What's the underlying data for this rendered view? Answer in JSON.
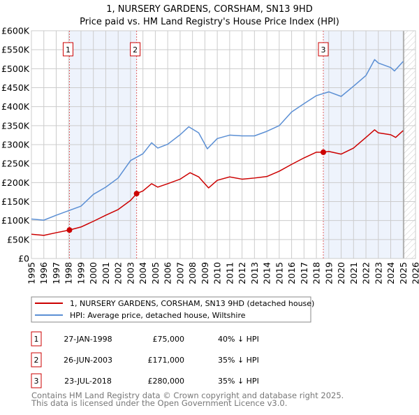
{
  "chart_data": {
    "type": "line",
    "title": "1, NURSERY GARDENS, CORSHAM, SN13 9HD",
    "subtitle": "Price paid vs. HM Land Registry's House Price Index (HPI)",
    "xlim": [
      1995,
      2026
    ],
    "ylim": [
      0,
      600000
    ],
    "grid": true,
    "x_ticks": [
      "1995",
      "1996",
      "1997",
      "1998",
      "1999",
      "2000",
      "2001",
      "2002",
      "2003",
      "2004",
      "2005",
      "2006",
      "2007",
      "2008",
      "2009",
      "2010",
      "2011",
      "2012",
      "2013",
      "2014",
      "2015",
      "2016",
      "2017",
      "2018",
      "2019",
      "2020",
      "2021",
      "2022",
      "2023",
      "2024",
      "2025",
      "2026"
    ],
    "y_ticks": [
      {
        "value": 0,
        "label": "£0"
      },
      {
        "value": 50000,
        "label": "£50K"
      },
      {
        "value": 100000,
        "label": "£100K"
      },
      {
        "value": 150000,
        "label": "£150K"
      },
      {
        "value": 200000,
        "label": "£200K"
      },
      {
        "value": 250000,
        "label": "£250K"
      },
      {
        "value": 300000,
        "label": "£300K"
      },
      {
        "value": 350000,
        "label": "£350K"
      },
      {
        "value": 400000,
        "label": "£400K"
      },
      {
        "value": 450000,
        "label": "£450K"
      },
      {
        "value": 500000,
        "label": "£500K"
      },
      {
        "value": 550000,
        "label": "£550K"
      },
      {
        "value": 600000,
        "label": "£600K"
      }
    ],
    "shaded_ranges": [
      [
        1998.07,
        2003.49
      ],
      [
        2018.56,
        2025.05
      ]
    ],
    "hatched_from": 2025.05,
    "series": [
      {
        "name": "1, NURSERY GARDENS, CORSHAM, SN13 9HD (detached house)",
        "color": "#cc0000",
        "points": [
          [
            1995,
            64000
          ],
          [
            1996,
            61000
          ],
          [
            1997,
            68000
          ],
          [
            1998.07,
            75000
          ],
          [
            1999,
            83000
          ],
          [
            2000,
            98000
          ],
          [
            2001,
            114000
          ],
          [
            2002,
            129000
          ],
          [
            2003,
            153000
          ],
          [
            2003.49,
            171000
          ],
          [
            2004,
            178000
          ],
          [
            2004.7,
            197000
          ],
          [
            2005.2,
            188000
          ],
          [
            2006,
            197000
          ],
          [
            2007,
            209000
          ],
          [
            2007.8,
            226000
          ],
          [
            2008.5,
            215000
          ],
          [
            2009.3,
            186000
          ],
          [
            2010,
            206000
          ],
          [
            2011,
            215000
          ],
          [
            2012,
            209000
          ],
          [
            2013,
            212000
          ],
          [
            2014,
            216000
          ],
          [
            2015,
            230000
          ],
          [
            2016,
            248000
          ],
          [
            2017,
            265000
          ],
          [
            2018,
            280000
          ],
          [
            2018.56,
            280000
          ],
          [
            2019,
            282000
          ],
          [
            2020,
            275000
          ],
          [
            2021,
            291000
          ],
          [
            2022,
            319000
          ],
          [
            2022.7,
            339000
          ],
          [
            2023,
            331000
          ],
          [
            2024,
            326000
          ],
          [
            2024.4,
            319000
          ],
          [
            2025,
            337000
          ]
        ]
      },
      {
        "name": "HPI: Average price, detached house, Wiltshire",
        "color": "#5b8fd4",
        "points": [
          [
            1995,
            104000
          ],
          [
            1996,
            101000
          ],
          [
            1997,
            114000
          ],
          [
            1998,
            126000
          ],
          [
            1999,
            138000
          ],
          [
            2000,
            169000
          ],
          [
            2001,
            188000
          ],
          [
            2002,
            212000
          ],
          [
            2003,
            258000
          ],
          [
            2004,
            276000
          ],
          [
            2004.7,
            305000
          ],
          [
            2005.2,
            291000
          ],
          [
            2006,
            301000
          ],
          [
            2007,
            326000
          ],
          [
            2007.7,
            347000
          ],
          [
            2008.5,
            331000
          ],
          [
            2009.2,
            289000
          ],
          [
            2010,
            316000
          ],
          [
            2011,
            325000
          ],
          [
            2012,
            323000
          ],
          [
            2013,
            323000
          ],
          [
            2014,
            335000
          ],
          [
            2015,
            350000
          ],
          [
            2016,
            386000
          ],
          [
            2017,
            408000
          ],
          [
            2018,
            429000
          ],
          [
            2019,
            439000
          ],
          [
            2020,
            427000
          ],
          [
            2021,
            454000
          ],
          [
            2022,
            482000
          ],
          [
            2022.7,
            524000
          ],
          [
            2023,
            515000
          ],
          [
            2024,
            503000
          ],
          [
            2024.3,
            494000
          ],
          [
            2025,
            519000
          ]
        ]
      }
    ],
    "markers": [
      {
        "label": "1",
        "x": 1998.07,
        "y": 75000
      },
      {
        "label": "2",
        "x": 2003.49,
        "y": 171000
      },
      {
        "label": "3",
        "x": 2018.56,
        "y": 280000
      }
    ]
  },
  "legend": {
    "property": "1, NURSERY GARDENS, CORSHAM, SN13 9HD (detached house)",
    "hpi": "HPI: Average price, detached house, Wiltshire"
  },
  "transactions": [
    {
      "num": "1",
      "date": "27-JAN-1998",
      "price": "£75,000",
      "hpi": "40% ↓ HPI"
    },
    {
      "num": "2",
      "date": "26-JUN-2003",
      "price": "£171,000",
      "hpi": "35% ↓ HPI"
    },
    {
      "num": "3",
      "date": "23-JUL-2018",
      "price": "£280,000",
      "hpi": "35% ↓ HPI"
    }
  ],
  "footer": {
    "line1": "Contains HM Land Registry data © Crown copyright and database right 2025.",
    "line2": "This data is licensed under the Open Government Licence v3.0."
  },
  "colors": {
    "property": "#cc0000",
    "hpi": "#5b8fd4",
    "shade": "#eef3fc",
    "marker_border": "#cc0000"
  }
}
